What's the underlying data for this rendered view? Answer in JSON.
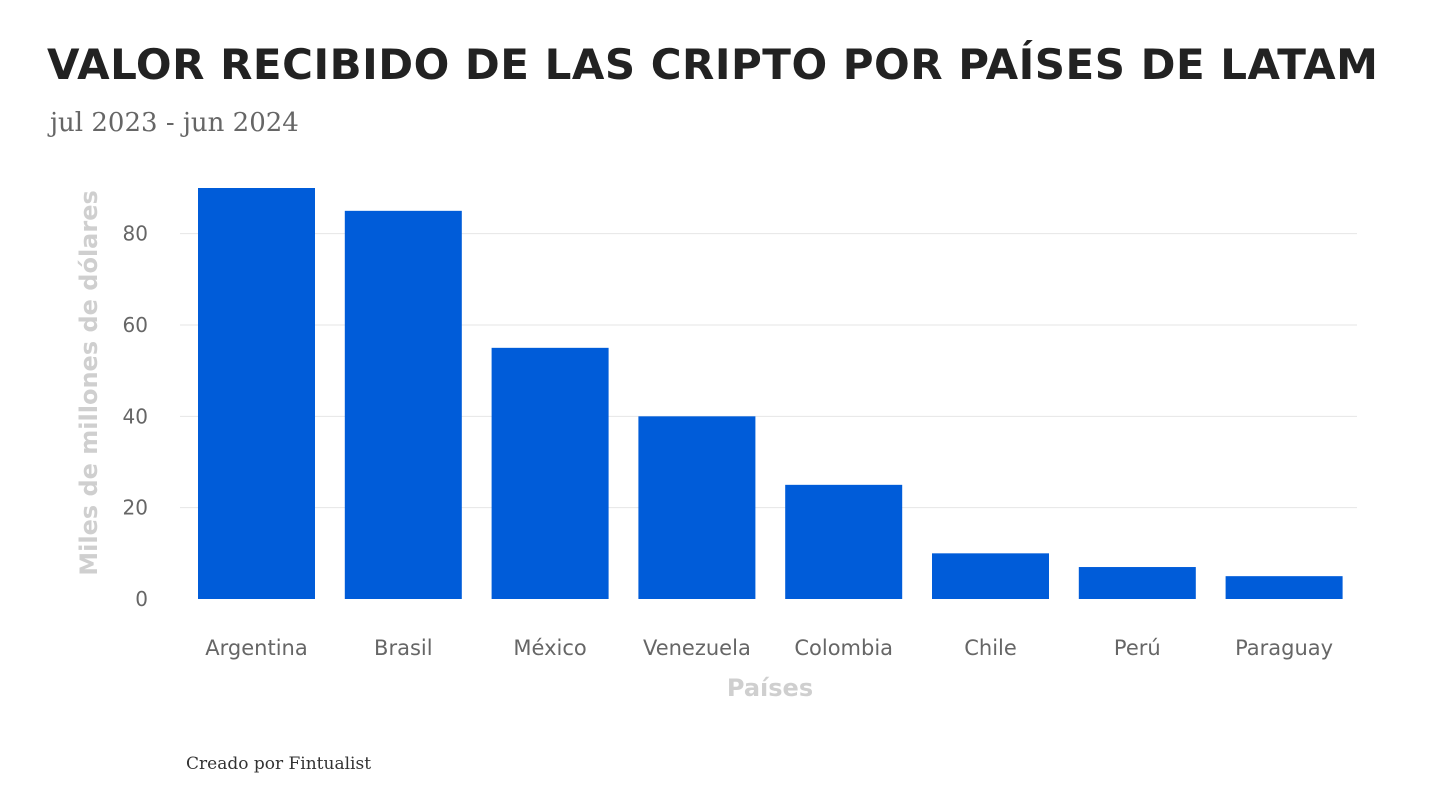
{
  "chart_data": {
    "type": "bar",
    "title": "VALOR RECIBIDO DE LAS CRIPTO POR PAÍSES DE LATAM",
    "subtitle": "jul 2023 -  jun 2024",
    "xlabel": "Países",
    "ylabel": "Miles de millones de dólares",
    "categories": [
      "Argentina",
      "Brasil",
      "México",
      "Venezuela",
      "Colombia",
      "Chile",
      "Perú",
      "Paraguay"
    ],
    "values": [
      90,
      85,
      55,
      40,
      25,
      10,
      7,
      5
    ],
    "yticks": [
      0,
      20,
      40,
      60,
      80
    ],
    "ylim": [
      0,
      90
    ],
    "grid": true,
    "bar_color": "#005cd9"
  },
  "footer": {
    "credit": "Creado por Fintualist"
  }
}
